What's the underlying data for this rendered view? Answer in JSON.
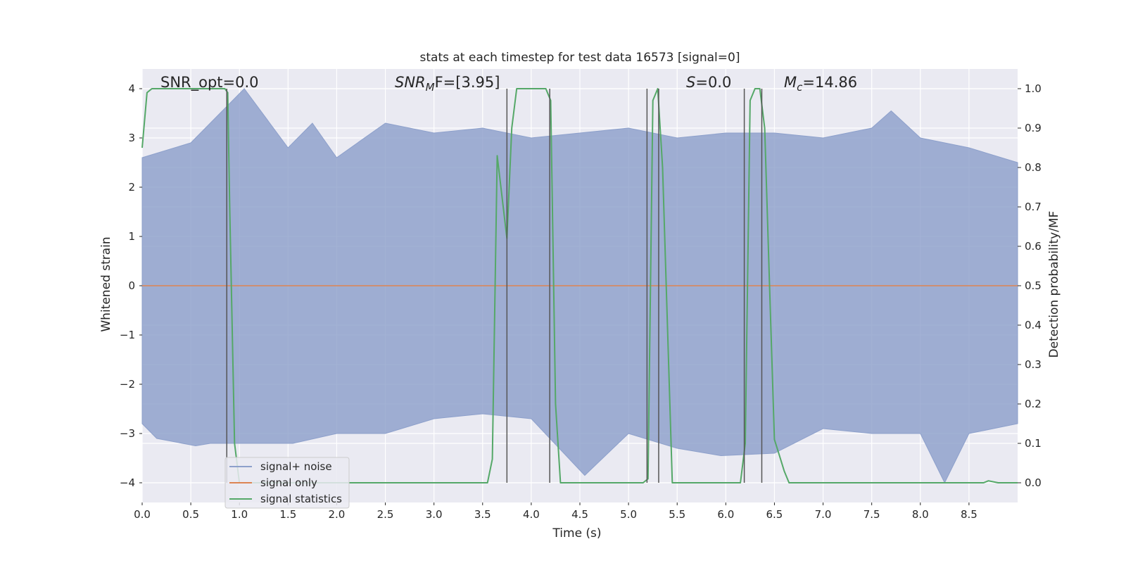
{
  "chart_data": {
    "type": "line",
    "title": "stats at each timestep for test data 16573 [signal=0]",
    "xlabel": "Time (s)",
    "ylabel": "Whitened strain",
    "ylabel_right": "Detection probability/MF",
    "xlim": [
      0.0,
      9.0
    ],
    "ylim": [
      -4.4,
      4.4
    ],
    "ylim_right": [
      -0.05,
      1.05
    ],
    "x_ticks": [
      0.0,
      0.5,
      1.0,
      1.5,
      2.0,
      2.5,
      3.0,
      3.5,
      4.0,
      4.5,
      5.0,
      5.5,
      6.0,
      6.5,
      7.0,
      7.5,
      8.0,
      8.5
    ],
    "x_tick_labels": [
      "0.0",
      "0.5",
      "1.0",
      "1.5",
      "2.0",
      "2.5",
      "3.0",
      "3.5",
      "4.0",
      "4.5",
      "5.0",
      "5.5",
      "6.0",
      "6.5",
      "7.0",
      "7.5",
      "8.0",
      "8.5"
    ],
    "y_ticks": [
      4,
      3,
      2,
      1,
      0,
      -1,
      -2,
      -3,
      -4
    ],
    "y_tick_labels": [
      "4",
      "3",
      "2",
      "1",
      "0",
      "−1",
      "−2",
      "−3",
      "−4"
    ],
    "y_right_ticks": [
      1.0,
      0.9,
      0.8,
      0.7,
      0.6,
      0.5,
      0.4,
      0.3,
      0.2,
      0.1,
      0.0
    ],
    "y_right_tick_labels": [
      "1.0",
      "0.9",
      "0.8",
      "0.7",
      "0.6",
      "0.5",
      "0.4",
      "0.3",
      "0.2",
      "0.1",
      "0.0"
    ],
    "grid": true,
    "legend_position": "lower-left",
    "annotations": {
      "snr_opt": "SNR_opt=0.0",
      "snr_mf_main": "SNR",
      "snr_mf_sub": "M",
      "snr_mf_rest": "F=[3.95]",
      "s_main": "S",
      "s_rest": "=0.0",
      "mc_main": "M",
      "mc_sub": "c",
      "mc_rest": "=14.86"
    },
    "series": [
      {
        "name": "signal+ noise",
        "color": "#8da0cb",
        "axis": "left",
        "envelope_upper": [
          [
            0.0,
            2.6
          ],
          [
            0.5,
            2.9
          ],
          [
            0.6,
            3.1
          ],
          [
            1.05,
            4.0
          ],
          [
            1.5,
            2.8
          ],
          [
            1.75,
            3.3
          ],
          [
            2.0,
            2.6
          ],
          [
            2.5,
            3.3
          ],
          [
            3.0,
            3.1
          ],
          [
            3.5,
            3.2
          ],
          [
            4.0,
            3.0
          ],
          [
            4.5,
            3.1
          ],
          [
            5.0,
            3.2
          ],
          [
            5.5,
            3.0
          ],
          [
            6.0,
            3.1
          ],
          [
            6.5,
            3.1
          ],
          [
            7.0,
            3.0
          ],
          [
            7.5,
            3.2
          ],
          [
            7.7,
            3.55
          ],
          [
            8.0,
            3.0
          ],
          [
            8.5,
            2.8
          ],
          [
            9.0,
            2.5
          ]
        ],
        "envelope_lower": [
          [
            0.0,
            -2.8
          ],
          [
            0.15,
            -3.1
          ],
          [
            0.55,
            -3.25
          ],
          [
            0.7,
            -3.2
          ],
          [
            1.55,
            -3.2
          ],
          [
            2.0,
            -3.0
          ],
          [
            2.5,
            -3.0
          ],
          [
            3.0,
            -2.7
          ],
          [
            3.5,
            -2.6
          ],
          [
            4.0,
            -2.7
          ],
          [
            4.55,
            -3.85
          ],
          [
            5.0,
            -3.0
          ],
          [
            5.5,
            -3.3
          ],
          [
            5.95,
            -3.45
          ],
          [
            6.5,
            -3.4
          ],
          [
            7.0,
            -2.9
          ],
          [
            7.5,
            -3.0
          ],
          [
            8.0,
            -3.0
          ],
          [
            8.25,
            -4.0
          ],
          [
            8.5,
            -3.0
          ],
          [
            9.0,
            -2.8
          ]
        ]
      },
      {
        "name": "signal only",
        "color": "#dd8452",
        "axis": "left",
        "x": [
          0.0,
          9.0
        ],
        "y": [
          0.0,
          0.0
        ]
      },
      {
        "name": "signal statistics",
        "color": "#55a868",
        "axis": "right",
        "x": [
          0.0,
          0.05,
          0.1,
          0.85,
          0.88,
          0.9,
          0.95,
          1.0,
          3.55,
          3.6,
          3.65,
          3.75,
          3.8,
          3.85,
          4.15,
          4.2,
          4.25,
          4.3,
          4.35,
          5.15,
          5.2,
          5.25,
          5.3,
          5.35,
          5.45,
          5.5,
          6.15,
          6.2,
          6.25,
          6.3,
          6.35,
          6.4,
          6.45,
          6.5,
          6.55,
          6.6,
          6.65,
          6.7,
          8.6,
          8.65,
          8.7,
          8.8,
          9.0
        ],
        "y": [
          0.85,
          0.99,
          1.0,
          1.0,
          0.99,
          0.7,
          0.1,
          0.0,
          0.0,
          0.06,
          0.83,
          0.62,
          0.9,
          1.0,
          1.0,
          0.97,
          0.2,
          0.0,
          0.0,
          0.0,
          0.01,
          0.97,
          1.0,
          0.8,
          0.0,
          0.0,
          0.0,
          0.1,
          0.97,
          1.0,
          1.0,
          0.9,
          0.5,
          0.11,
          0.07,
          0.03,
          0.0,
          0.0,
          0.0,
          0.0,
          0.005,
          0.0,
          0.0
        ]
      }
    ],
    "vertical_lines_x": [
      0.87,
      3.75,
      4.19,
      5.19,
      5.31,
      6.19,
      6.37
    ]
  }
}
